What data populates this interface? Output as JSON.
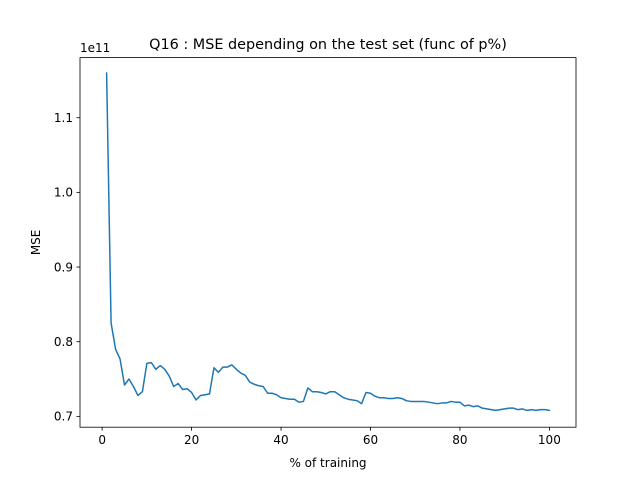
{
  "chart_data": {
    "type": "line",
    "title": "Q16 : MSE depending on the test set (func of p%)",
    "xlabel": "% of training",
    "ylabel": "MSE",
    "offset_text": "1e11",
    "xlim": [
      -4.95,
      105.95
    ],
    "ylim": [
      0.6855,
      1.1805
    ],
    "xticks": [
      0,
      20,
      40,
      60,
      80,
      100
    ],
    "xtick_labels": [
      "0",
      "20",
      "40",
      "60",
      "80",
      "100"
    ],
    "yticks": [
      0.7,
      0.8,
      0.9,
      1.0,
      1.1
    ],
    "ytick_labels": [
      "0.7",
      "0.8",
      "0.9",
      "1.0",
      "1.1"
    ],
    "grid": false,
    "series": [
      {
        "color": "#1f77b4",
        "x": [
          1,
          2,
          3,
          4,
          5,
          6,
          7,
          8,
          9,
          10,
          11,
          12,
          13,
          14,
          15,
          16,
          17,
          18,
          19,
          20,
          21,
          22,
          23,
          24,
          25,
          26,
          27,
          28,
          29,
          30,
          31,
          32,
          33,
          34,
          35,
          36,
          37,
          38,
          39,
          40,
          41,
          42,
          43,
          44,
          45,
          46,
          47,
          48,
          49,
          50,
          51,
          52,
          53,
          54,
          55,
          56,
          57,
          58,
          59,
          60,
          61,
          62,
          63,
          64,
          65,
          66,
          67,
          68,
          69,
          70,
          71,
          72,
          73,
          74,
          75,
          76,
          77,
          78,
          79,
          80,
          81,
          82,
          83,
          84,
          85,
          86,
          87,
          88,
          89,
          90,
          91,
          92,
          93,
          94,
          95,
          96,
          97,
          98,
          99,
          100
        ],
        "y": [
          1.16,
          0.825,
          0.79,
          0.777,
          0.742,
          0.75,
          0.74,
          0.728,
          0.733,
          0.771,
          0.772,
          0.763,
          0.768,
          0.763,
          0.754,
          0.74,
          0.744,
          0.736,
          0.737,
          0.732,
          0.722,
          0.728,
          0.729,
          0.73,
          0.765,
          0.759,
          0.766,
          0.766,
          0.769,
          0.763,
          0.758,
          0.755,
          0.746,
          0.743,
          0.741,
          0.74,
          0.731,
          0.731,
          0.729,
          0.725,
          0.724,
          0.723,
          0.723,
          0.719,
          0.72,
          0.738,
          0.733,
          0.733,
          0.732,
          0.73,
          0.733,
          0.733,
          0.729,
          0.725,
          0.723,
          0.722,
          0.721,
          0.717,
          0.732,
          0.731,
          0.727,
          0.725,
          0.725,
          0.724,
          0.724,
          0.725,
          0.724,
          0.721,
          0.72,
          0.72,
          0.72,
          0.72,
          0.719,
          0.718,
          0.717,
          0.718,
          0.718,
          0.72,
          0.719,
          0.719,
          0.714,
          0.715,
          0.713,
          0.714,
          0.711,
          0.71,
          0.709,
          0.708,
          0.709,
          0.71,
          0.711,
          0.711,
          0.709,
          0.71,
          0.708,
          0.709,
          0.708,
          0.709,
          0.709,
          0.708
        ]
      }
    ]
  }
}
